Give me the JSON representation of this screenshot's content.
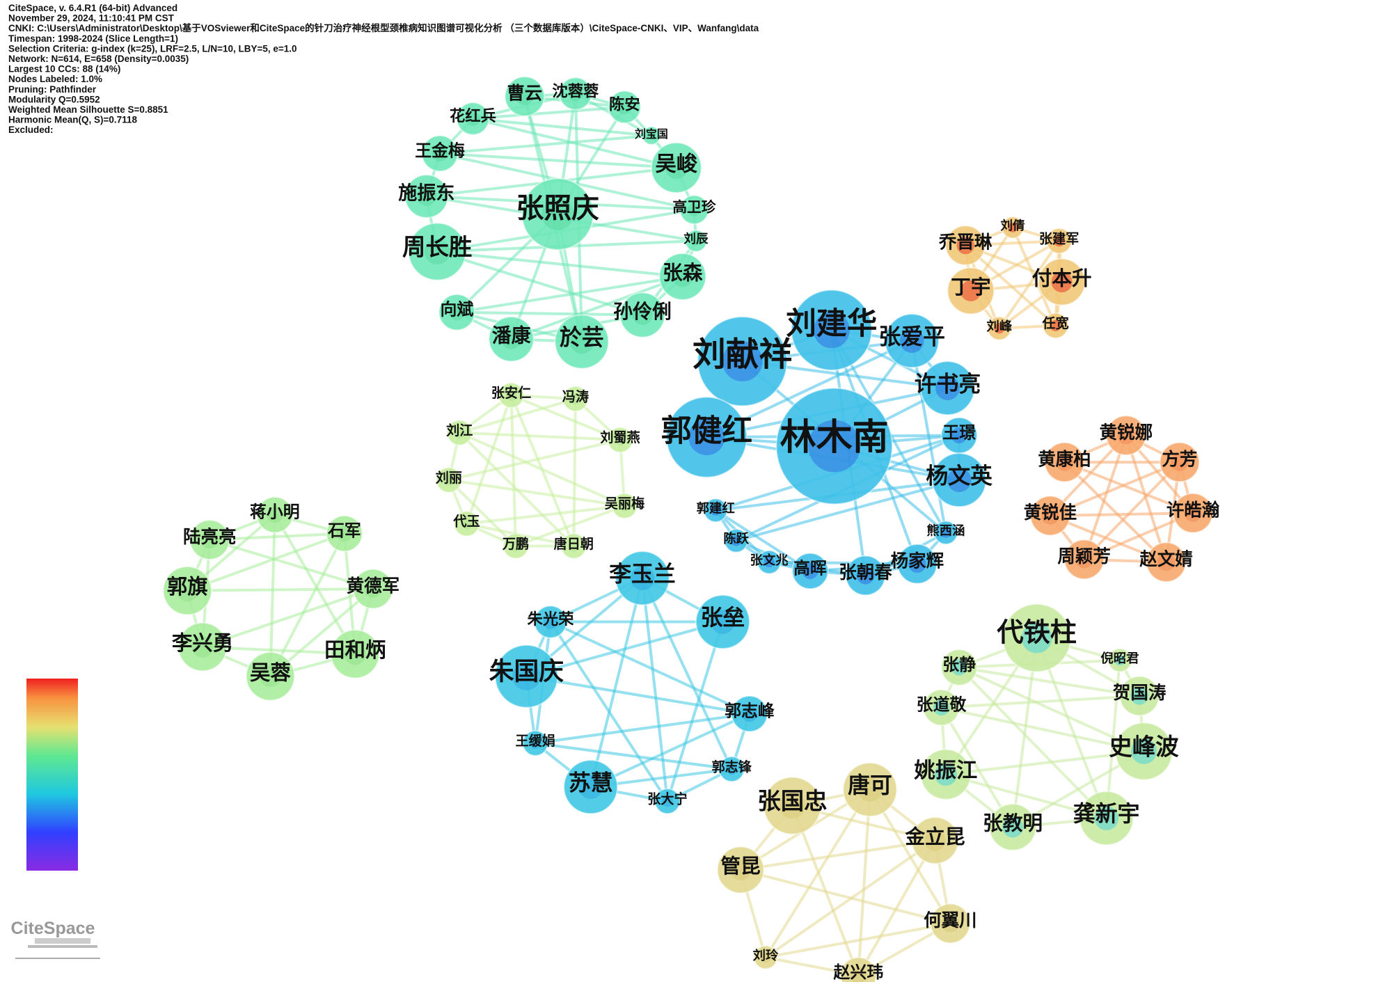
{
  "header": {
    "lines": [
      "CiteSpace, v. 6.4.R1 (64-bit) Advanced",
      "November 29, 2024, 11:10:41 PM CST",
      "CNKI: C:\\Users\\Administrator\\Desktop\\基于VOSviewer和CiteSpace的针刀治疗神经根型颈椎病知识图谱可视化分析 （三个数据库版本）\\CiteSpace-CNKI、VIP、Wanfang\\data",
      "Timespan: 1998-2024 (Slice Length=1)",
      "Selection Criteria: g-index (k=25), LRF=2.5, L/N=10, LBY=5, e=1.0",
      "Network: N=614, E=658 (Density=0.0035)",
      "Largest 10 CCs: 88 (14%)",
      "Nodes Labeled: 1.0%",
      "Pruning: Pathfinder",
      "Modularity Q=0.5952",
      "Weighted Mean Silhouette S=0.8851",
      "Harmonic Mean(Q, S)=0.7118",
      "Excluded:"
    ]
  },
  "clusters": [
    {
      "color": "#6fe8b8",
      "nodes": [
        "张照庆",
        "曹云",
        "沈蓉蓉",
        "陈安",
        "花红兵",
        "刘宝国",
        "王金梅",
        "吴峻",
        "施振东",
        "高卫珍",
        "刘辰",
        "周长胜",
        "张森",
        "孙伶俐",
        "向斌",
        "潘康",
        "於芸"
      ]
    },
    {
      "color": "#3fc0e8",
      "nodes": [
        "刘建华",
        "刘献祥",
        "张爱平",
        "许书亮",
        "郭健红",
        "林木南",
        "王璟",
        "杨文英",
        "郭建红",
        "陈跃",
        "张文兆",
        "高晖",
        "张朝春",
        "杨家辉",
        "熊西涵"
      ]
    },
    {
      "color": "#c8eea0",
      "nodes": [
        "张安仁",
        "冯涛",
        "刘江",
        "刘蜀燕",
        "刘丽",
        "吴丽梅",
        "代玉",
        "万鹏",
        "唐日朝"
      ]
    },
    {
      "color": "#a8ec9c",
      "nodes": [
        "蒋小明",
        "石军",
        "陆亮亮",
        "郭旗",
        "黄德军",
        "李兴勇",
        "田和炳",
        "吴蓉"
      ]
    },
    {
      "color": "#f7a86c",
      "nodes": [
        "黄锐娜",
        "黄康柏",
        "方芳",
        "许皓瀚",
        "黄锐佳",
        "周颖芳",
        "赵文婧"
      ]
    },
    {
      "color": "#f0c878",
      "nodes": [
        "乔晋琳",
        "刘倩",
        "张建军",
        "丁宇",
        "付本升",
        "刘峰",
        "任宽"
      ]
    },
    {
      "color": "#40c8e4",
      "nodes": [
        "李玉兰",
        "张垒",
        "朱光荣",
        "朱国庆",
        "郭志峰",
        "王缓娟",
        "郭志锋",
        "苏慧",
        "张大宁"
      ]
    },
    {
      "color": "#c8eaa0",
      "nodes": [
        "代铁柱",
        "倪昭君",
        "张静",
        "贺国涛",
        "张道敬",
        "史峰波",
        "姚振江",
        "张教明",
        "龚新宇"
      ]
    },
    {
      "color": "#e2d890",
      "nodes": [
        "唐可",
        "张国忠",
        "金立昆",
        "管昆",
        "何翼川",
        "刘玲",
        "赵兴玮"
      ]
    }
  ],
  "logo": "CiteSpace"
}
